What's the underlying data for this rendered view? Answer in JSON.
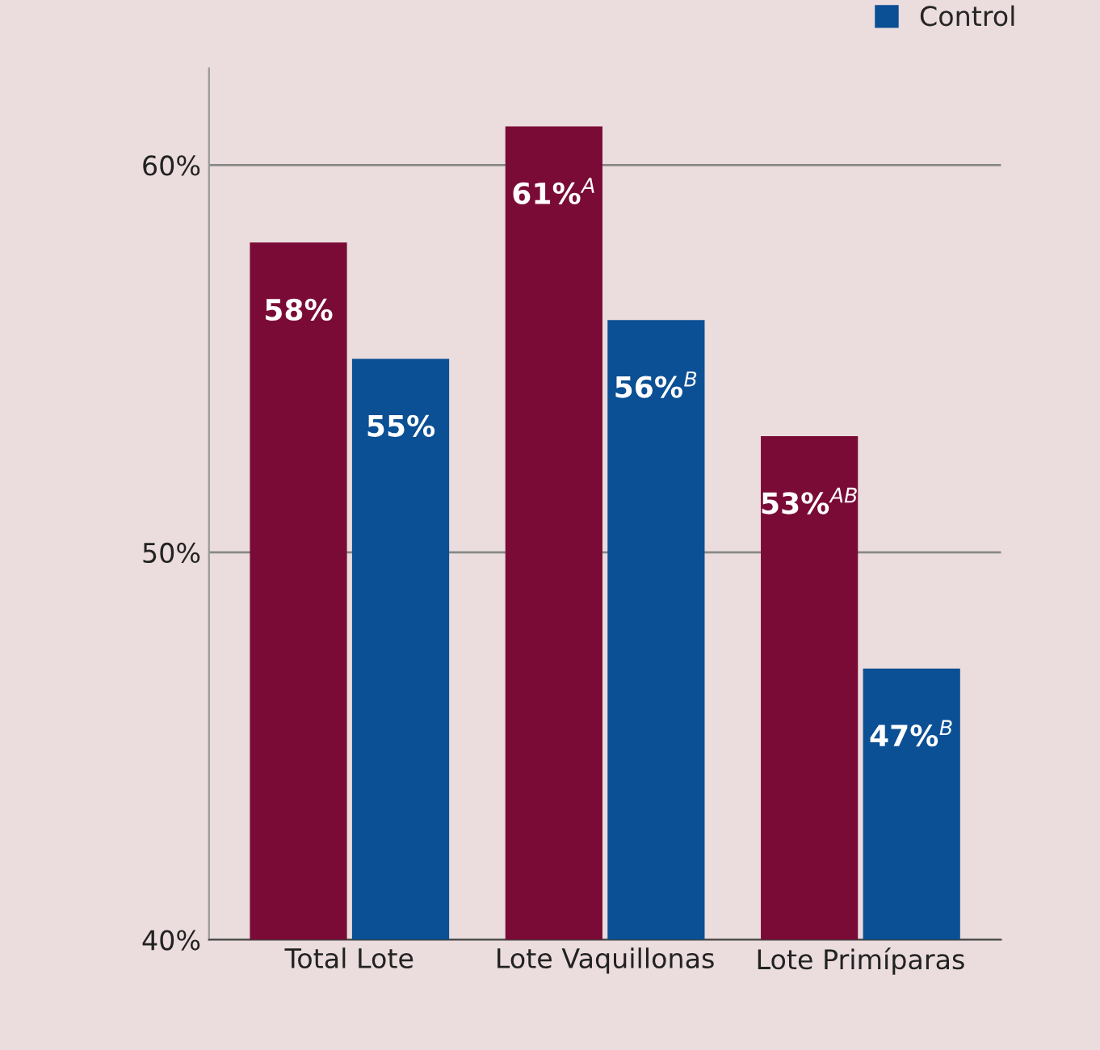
{
  "chart_data": {
    "type": "bar",
    "categories": [
      "Total Lote",
      "Lote Vaquillonas",
      "Lote Primíparas"
    ],
    "series": [
      {
        "color": "#7a0b36",
        "values": [
          58,
          61,
          53
        ],
        "value_labels": [
          "58%",
          "61%$^{A}$",
          "53%$^{AB}$"
        ]
      },
      {
        "name": "Control",
        "color": "#0b4f94",
        "values": [
          55,
          56,
          47
        ],
        "value_labels": [
          "55%",
          "56%$^{B}$",
          "47%$^{B}$"
        ]
      }
    ],
    "ylim": [
      40,
      62.5
    ],
    "yticks": [
      {
        "value": 40,
        "label": "40%"
      },
      {
        "value": 50,
        "label": "50%"
      },
      {
        "value": 60,
        "label": "60%"
      }
    ],
    "grid": "y",
    "legend": "top right"
  }
}
